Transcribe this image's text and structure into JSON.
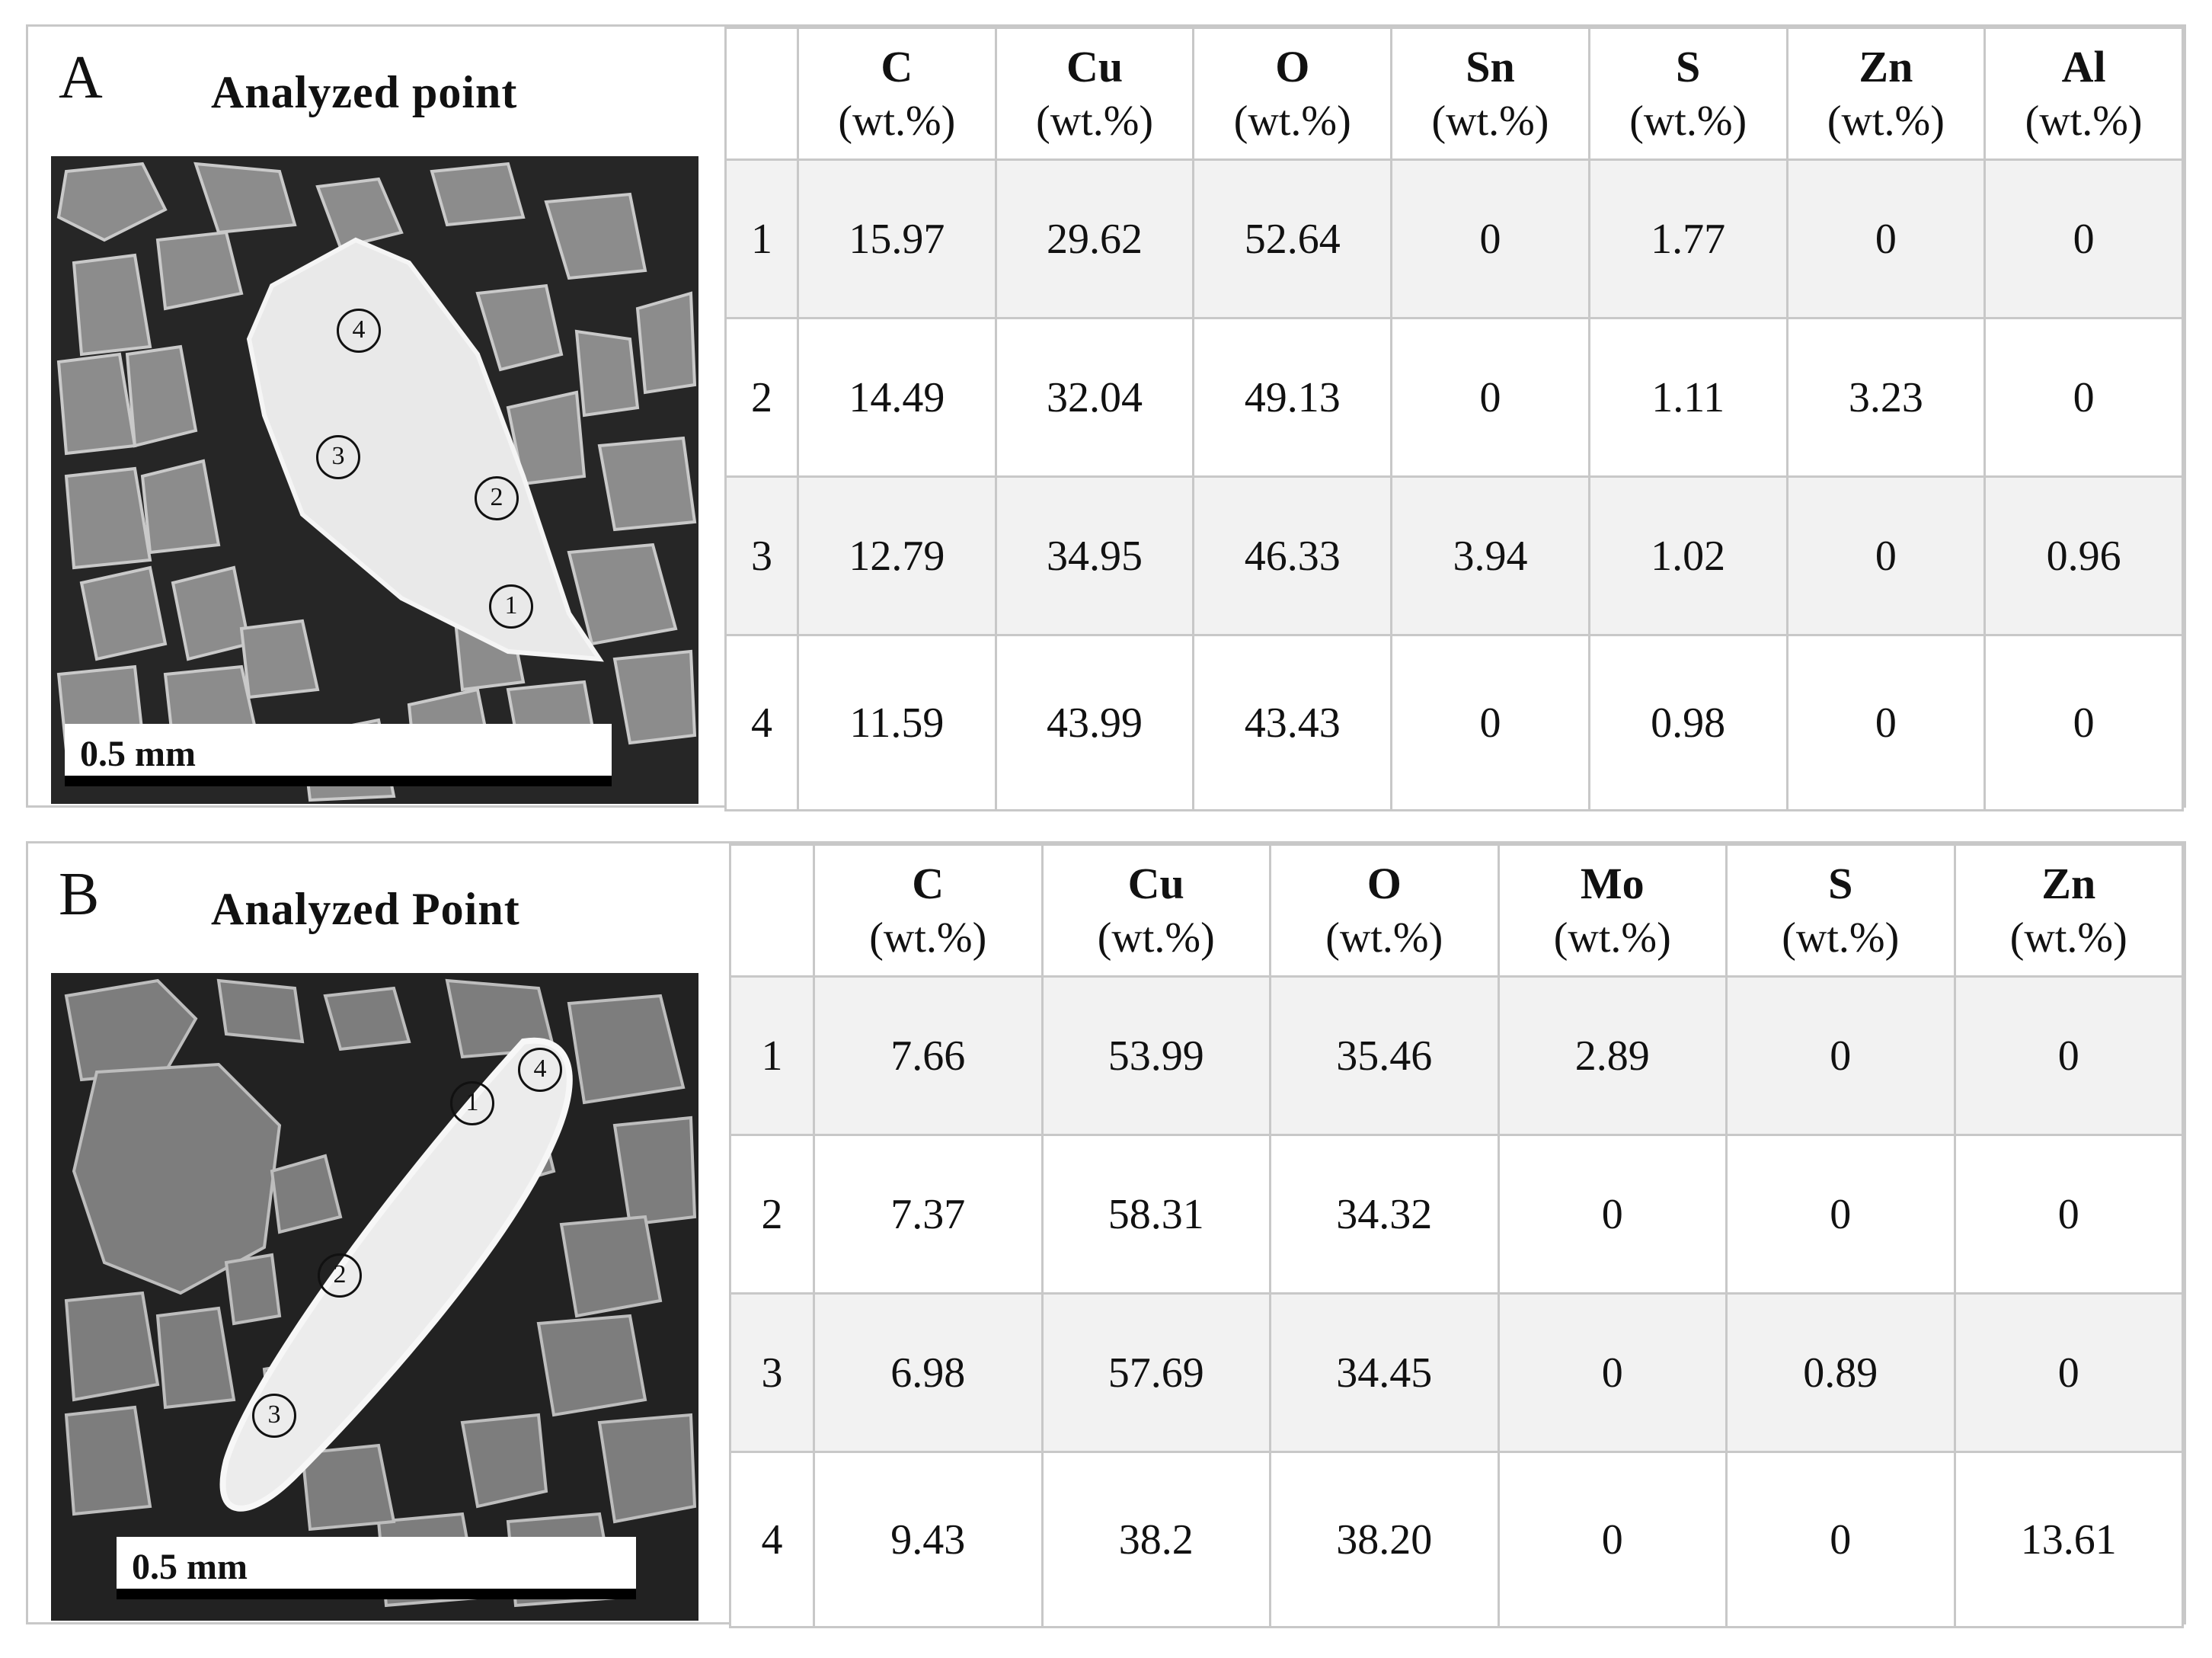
{
  "panel_a": {
    "letter": "A",
    "heading": "Analyzed point",
    "scale_label": "0.5 mm",
    "point_markers": [
      "1",
      "2",
      "3",
      "4"
    ],
    "columns": [
      {
        "el": "C",
        "unit": "(wt.%)"
      },
      {
        "el": "Cu",
        "unit": "(wt.%)"
      },
      {
        "el": "O",
        "unit": "(wt.%)"
      },
      {
        "el": "Sn",
        "unit": "(wt.%)"
      },
      {
        "el": "S",
        "unit": "(wt.%)"
      },
      {
        "el": "Zn",
        "unit": "(wt.%)"
      },
      {
        "el": "Al",
        "unit": "(wt.%)"
      }
    ],
    "rows": [
      [
        "1",
        "15.97",
        "29.62",
        "52.64",
        "0",
        "1.77",
        "0",
        "0"
      ],
      [
        "2",
        "14.49",
        "32.04",
        "49.13",
        "0",
        "1.11",
        "3.23",
        "0"
      ],
      [
        "3",
        "12.79",
        "34.95",
        "46.33",
        "3.94",
        "1.02",
        "0",
        "0.96"
      ],
      [
        "4",
        "11.59",
        "43.99",
        "43.43",
        "0",
        "0.98",
        "0",
        "0"
      ]
    ]
  },
  "panel_b": {
    "letter": "B",
    "heading": "Analyzed Point",
    "scale_label": "0.5 mm",
    "point_markers": [
      "1",
      "2",
      "3",
      "4"
    ],
    "columns": [
      {
        "el": "C",
        "unit": "(wt.%)"
      },
      {
        "el": "Cu",
        "unit": "(wt.%)"
      },
      {
        "el": "O",
        "unit": "(wt.%)"
      },
      {
        "el": "Mo",
        "unit": "(wt.%)"
      },
      {
        "el": "S",
        "unit": "(wt.%)"
      },
      {
        "el": "Zn",
        "unit": "(wt.%)"
      }
    ],
    "rows": [
      [
        "1",
        "7.66",
        "53.99",
        "35.46",
        "2.89",
        "0",
        "0"
      ],
      [
        "2",
        "7.37",
        "58.31",
        "34.32",
        "0",
        "0",
        "0"
      ],
      [
        "3",
        "6.98",
        "57.69",
        "34.45",
        "0",
        "0.89",
        "0"
      ],
      [
        "4",
        "9.43",
        "38.2",
        "38.20",
        "0",
        "0",
        "13.61"
      ]
    ]
  }
}
